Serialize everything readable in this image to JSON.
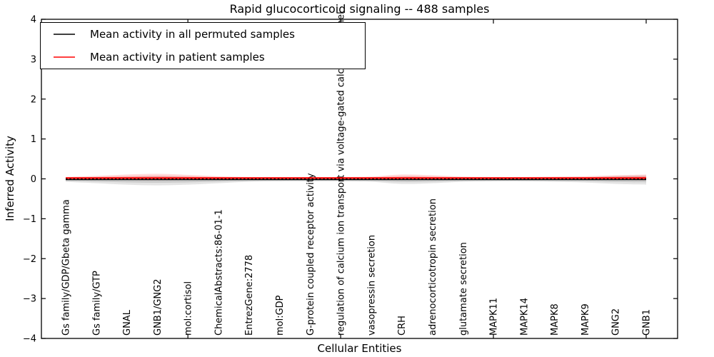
{
  "figure": {
    "title": "Rapid glucocorticoid signaling -- 488 samples",
    "xlabel": "Cellular Entities",
    "ylabel": "Inferred Activity"
  },
  "legend": {
    "entries": [
      {
        "label": "Mean activity in all permuted samples",
        "color": "#000000"
      },
      {
        "label": "Mean activity in patient samples",
        "color": "#ff0000"
      }
    ]
  },
  "chart_data": {
    "type": "line",
    "title": "Rapid glucocorticoid signaling -- 488 samples",
    "xlabel": "Cellular Entities",
    "ylabel": "Inferred Activity",
    "ylim": [
      -4,
      4
    ],
    "yticks": [
      4,
      3,
      2,
      1,
      0,
      -1,
      -2,
      -3,
      -4
    ],
    "grid": false,
    "legend_position": "upper left",
    "categories": [
      "Gs family/GDP/Gbeta gamma",
      "Gs family/GTP",
      "GNAL",
      "GNB1/GNG2",
      "mol:cortisol",
      "ChemicalAbstracts:86-01-1",
      "EntrezGene:2778",
      "mol:GDP",
      "G-protein coupled receptor activity",
      "regulation of calcium ion transport via voltage-gated calcium channel",
      "vasopressin secretion",
      "CRH",
      "adrenocorticotropin secretion",
      "glutamate secretion",
      "MAPK11",
      "MAPK14",
      "MAPK8",
      "MAPK9",
      "GNG2",
      "GNB1"
    ],
    "series": [
      {
        "name": "Mean activity in all permuted samples",
        "color": "#000000",
        "style": "solid-with-dotted-overlay",
        "values": [
          -0.02,
          -0.02,
          -0.02,
          -0.02,
          -0.02,
          -0.02,
          -0.02,
          -0.02,
          -0.02,
          -0.02,
          -0.02,
          -0.02,
          -0.02,
          -0.02,
          -0.02,
          -0.02,
          -0.02,
          -0.02,
          -0.02,
          -0.02
        ]
      },
      {
        "name": "Mean activity in patient samples",
        "color": "#ff0000",
        "style": "solid",
        "values": [
          0.02,
          0.02,
          0.02,
          0.02,
          0.02,
          0.02,
          0.02,
          0.02,
          0.02,
          0.02,
          0.02,
          0.02,
          0.02,
          0.02,
          0.02,
          0.02,
          0.02,
          0.02,
          0.02,
          0.02
        ]
      }
    ],
    "bands": [
      {
        "name": "permuted-activity-spread",
        "color": "#000000",
        "opacity": 0.1,
        "upper": [
          0.036,
          0.054,
          0.072,
          0.089,
          0.072,
          0.054,
          0.036,
          0.036,
          0.036,
          0.036,
          0.036,
          0.072,
          0.063,
          0.036,
          0.036,
          0.036,
          0.036,
          0.054,
          0.089,
          0.107
        ],
        "lower": [
          0.054,
          0.089,
          0.125,
          0.143,
          0.125,
          0.089,
          0.054,
          0.045,
          0.045,
          0.045,
          0.054,
          0.107,
          0.089,
          0.054,
          0.045,
          0.045,
          0.054,
          0.072,
          0.107,
          0.125
        ]
      },
      {
        "name": "patient-activity-spread",
        "color": "#ff0000",
        "opacity": 0.14,
        "upper": [
          0.027,
          0.054,
          0.089,
          0.107,
          0.081,
          0.045,
          0.027,
          0.027,
          0.027,
          0.027,
          0.036,
          0.089,
          0.072,
          0.036,
          0.027,
          0.027,
          0.036,
          0.045,
          0.072,
          0.089
        ],
        "lower": [
          0.027,
          0.036,
          0.045,
          0.054,
          0.045,
          0.036,
          0.027,
          0.027,
          0.027,
          0.027,
          0.027,
          0.045,
          0.036,
          0.027,
          0.027,
          0.027,
          0.027,
          0.036,
          0.045,
          0.054
        ]
      }
    ],
    "x_axis_tick_indices": [
      4,
      9,
      14,
      19
    ]
  }
}
